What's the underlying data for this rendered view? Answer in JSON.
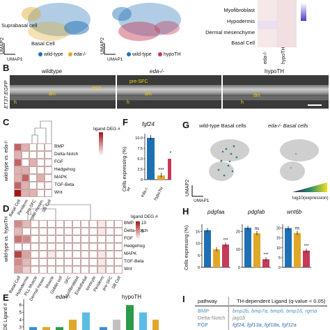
{
  "panelA": {
    "left_labels": {
      "suprabasal": "Suprabasal\ncell",
      "basal": "Basal Cell",
      "umap1": "UMAP1",
      "umap2": "UMAP2"
    },
    "left_legend": [
      "wild-type",
      "eda-/-"
    ],
    "mid_legend": [
      "wild-type",
      "hypoTH"
    ],
    "mid_umap1": "UMAP1",
    "mid_umap2": "UMAP2",
    "heat_rows": [
      "Myofibroblast",
      "Hypodermis",
      "Dermal mesenchyme",
      "Basal Cell"
    ],
    "heat_cols": [
      "eda-/-",
      "hypoTH"
    ],
    "colors": {
      "wildtype": "#1f6fb5",
      "eda": "#e0a828",
      "hypoTH": "#c43a57"
    }
  },
  "panelB": {
    "letter": "B",
    "ylabel": "ET37:EGFP",
    "titles": [
      "wildtype",
      "eda-/-",
      "hypoTH"
    ],
    "annot1": {
      "sfc": "SFC",
      "dm": "dm",
      "h": "h"
    },
    "annot2": {
      "pre": "pre-SFC",
      "dm": "dm",
      "h": "h"
    },
    "annot3": {
      "dm": "dm",
      "h": "h"
    }
  },
  "panelC": {
    "letter": "C",
    "ylabel": "wild-type vs. eda-/-",
    "legend_title": "ligand DEG #",
    "rows": [
      "BMP",
      "Delta-Notch",
      "FGF",
      "Hedgehog",
      "MAPK",
      "TGF-Beta",
      "Wnt"
    ],
    "cols": [
      "Basal Cell",
      "Periderm",
      "pre-SFC",
      "Dermal mesen.",
      "SB Cell"
    ],
    "values": [
      [
        2,
        1,
        0,
        0,
        0
      ],
      [
        1,
        0,
        0,
        0,
        0
      ],
      [
        2,
        0,
        1,
        0,
        0
      ],
      [
        1,
        1,
        0,
        0,
        0
      ],
      [
        1,
        2,
        0,
        1,
        0
      ],
      [
        2,
        1,
        0,
        0,
        0
      ],
      [
        3,
        1,
        1,
        0,
        0
      ]
    ]
  },
  "panelD": {
    "letter": "D",
    "ylabel": "wild-type vs. hypoTH",
    "legend_title": "ligand DEG #",
    "legend_max": "10",
    "legend_mid": "5",
    "rows": [
      "BMP",
      "Delta-Notch",
      "FGF",
      "Hedgehog",
      "MAPK",
      "TGF-Beta",
      "Wnt"
    ],
    "cols": [
      "Basal Cell",
      "Hypodermis",
      "PLL Muscle",
      "Dermal mesen.",
      "Muscle",
      "Goblet cell",
      "SFC",
      "Myofibroblast",
      "Endothelial",
      "Ionocyte",
      "Periderm",
      "pre-SFC",
      "SB Cell"
    ],
    "values": [
      [
        5,
        3,
        0,
        0,
        0,
        0,
        0,
        0,
        0,
        0,
        1,
        0,
        0
      ],
      [
        3,
        0,
        0,
        0,
        0,
        0,
        0,
        0,
        0,
        0,
        1,
        0,
        0
      ],
      [
        6,
        5,
        0,
        0,
        0,
        0,
        0,
        0,
        0,
        0,
        0,
        0,
        0
      ],
      [
        0,
        0,
        0,
        0,
        0,
        0,
        0,
        0,
        0,
        0,
        0,
        0,
        0
      ],
      [
        8,
        4,
        0,
        0,
        1,
        0,
        0,
        0,
        0,
        0,
        1,
        0,
        0
      ],
      [
        5,
        3,
        0,
        0,
        0,
        0,
        0,
        0,
        0,
        0,
        1,
        0,
        0
      ],
      [
        4,
        2,
        0,
        0,
        0,
        0,
        0,
        0,
        0,
        0,
        1,
        0,
        0
      ]
    ]
  },
  "panelE": {
    "letter": "E",
    "ylabel": "DE Ligand #",
    "groups": [
      "eda-/-",
      "hypoTH"
    ],
    "yticks": [
      "3",
      "4",
      "5",
      "6"
    ]
  },
  "panelF": {
    "letter": "F",
    "title": "fgf24",
    "ylabel": "Cells expressing (%)",
    "yticks": [
      "0",
      "2.5",
      "5.0",
      "7.5",
      "10.0"
    ],
    "categories": [
      "wt",
      "eda-/-",
      "hypoTH"
    ],
    "sig": [
      "***",
      "**"
    ]
  },
  "panelG": {
    "letter": "G",
    "titles": [
      "wild-type Basal cells",
      "eda-/- Basal cells"
    ],
    "umap1": "UMAP1",
    "umap2": "UMAP2",
    "legend": "log10(expression)"
  },
  "panelH": {
    "letter": "H",
    "ylabel": "Cells expressing (%)",
    "genes": [
      "pdgfaa",
      "pdgfab",
      "wnt6b"
    ],
    "categories": [
      "wt",
      "eda-/-",
      "hypoTH"
    ],
    "sig": [
      [
        "***"
      ],
      [
        "ns",
        "***"
      ],
      [
        "ns",
        "***"
      ]
    ],
    "yticks": [
      [
        "0",
        "5",
        "10",
        "15"
      ],
      [
        "0",
        "10",
        "20"
      ],
      [
        "0",
        "5",
        "10",
        "15",
        "20"
      ]
    ]
  },
  "panelI": {
    "letter": "I",
    "col1": "pathway",
    "col2": "TH-dependent Ligand (q-value < 0.05)",
    "rows": [
      {
        "pathway": "BMP",
        "ligands": "bmp2b, bmp7a, bmp6, bmp16, rgma",
        "color": "#4a90c8"
      },
      {
        "pathway": "Delta-Notch",
        "ligands": "jag1b",
        "color": "#888888"
      },
      {
        "pathway": "FGF",
        "ligands": "fgf24, fgf13a, fgf18a, fgf12a",
        "color": "#3a6fb0"
      }
    ]
  },
  "chart_data": [
    {
      "type": "bar",
      "title": "fgf24",
      "ylabel": "Cells expressing (%)",
      "categories": [
        "wt",
        "eda-/-",
        "hypoTH"
      ],
      "values": [
        10.0,
        1.0,
        5.0
      ],
      "ylim": [
        0,
        11
      ],
      "colors": [
        "#1f6fb5",
        "#e0a828",
        "#c43a57"
      ]
    },
    {
      "type": "bar",
      "title": "pdgfaa",
      "ylabel": "Cells expressing (%)",
      "categories": [
        "wt",
        "eda-/-",
        "hypoTH"
      ],
      "values": [
        15.5,
        7.5,
        9.5
      ],
      "ylim": [
        0,
        18
      ]
    },
    {
      "type": "bar",
      "title": "pdgfab",
      "categories": [
        "wt",
        "eda-/-",
        "hypoTH"
      ],
      "values": [
        22,
        19,
        4.5
      ],
      "ylim": [
        0,
        24
      ]
    },
    {
      "type": "bar",
      "title": "wnt6b",
      "categories": [
        "wt",
        "eda-/-",
        "hypoTH"
      ],
      "values": [
        20,
        17.5,
        8.5
      ],
      "ylim": [
        0,
        22
      ]
    },
    {
      "type": "bar",
      "ylabel": "DE Ligand #",
      "groups": [
        "eda-/-",
        "hypoTH"
      ],
      "values": [
        3,
        3,
        3,
        4,
        5,
        3,
        4,
        6,
        5,
        4
      ],
      "colors": [
        "#3a8dd6",
        "#e0a828",
        "#2d9a4a",
        "#e0a828",
        "#5bbde4",
        "#3a8dd6",
        "#c0c0c0",
        "#2d9a4a",
        "#5bbde4",
        "#e0a828"
      ],
      "ylim": [
        2.6,
        6.4
      ]
    }
  ]
}
